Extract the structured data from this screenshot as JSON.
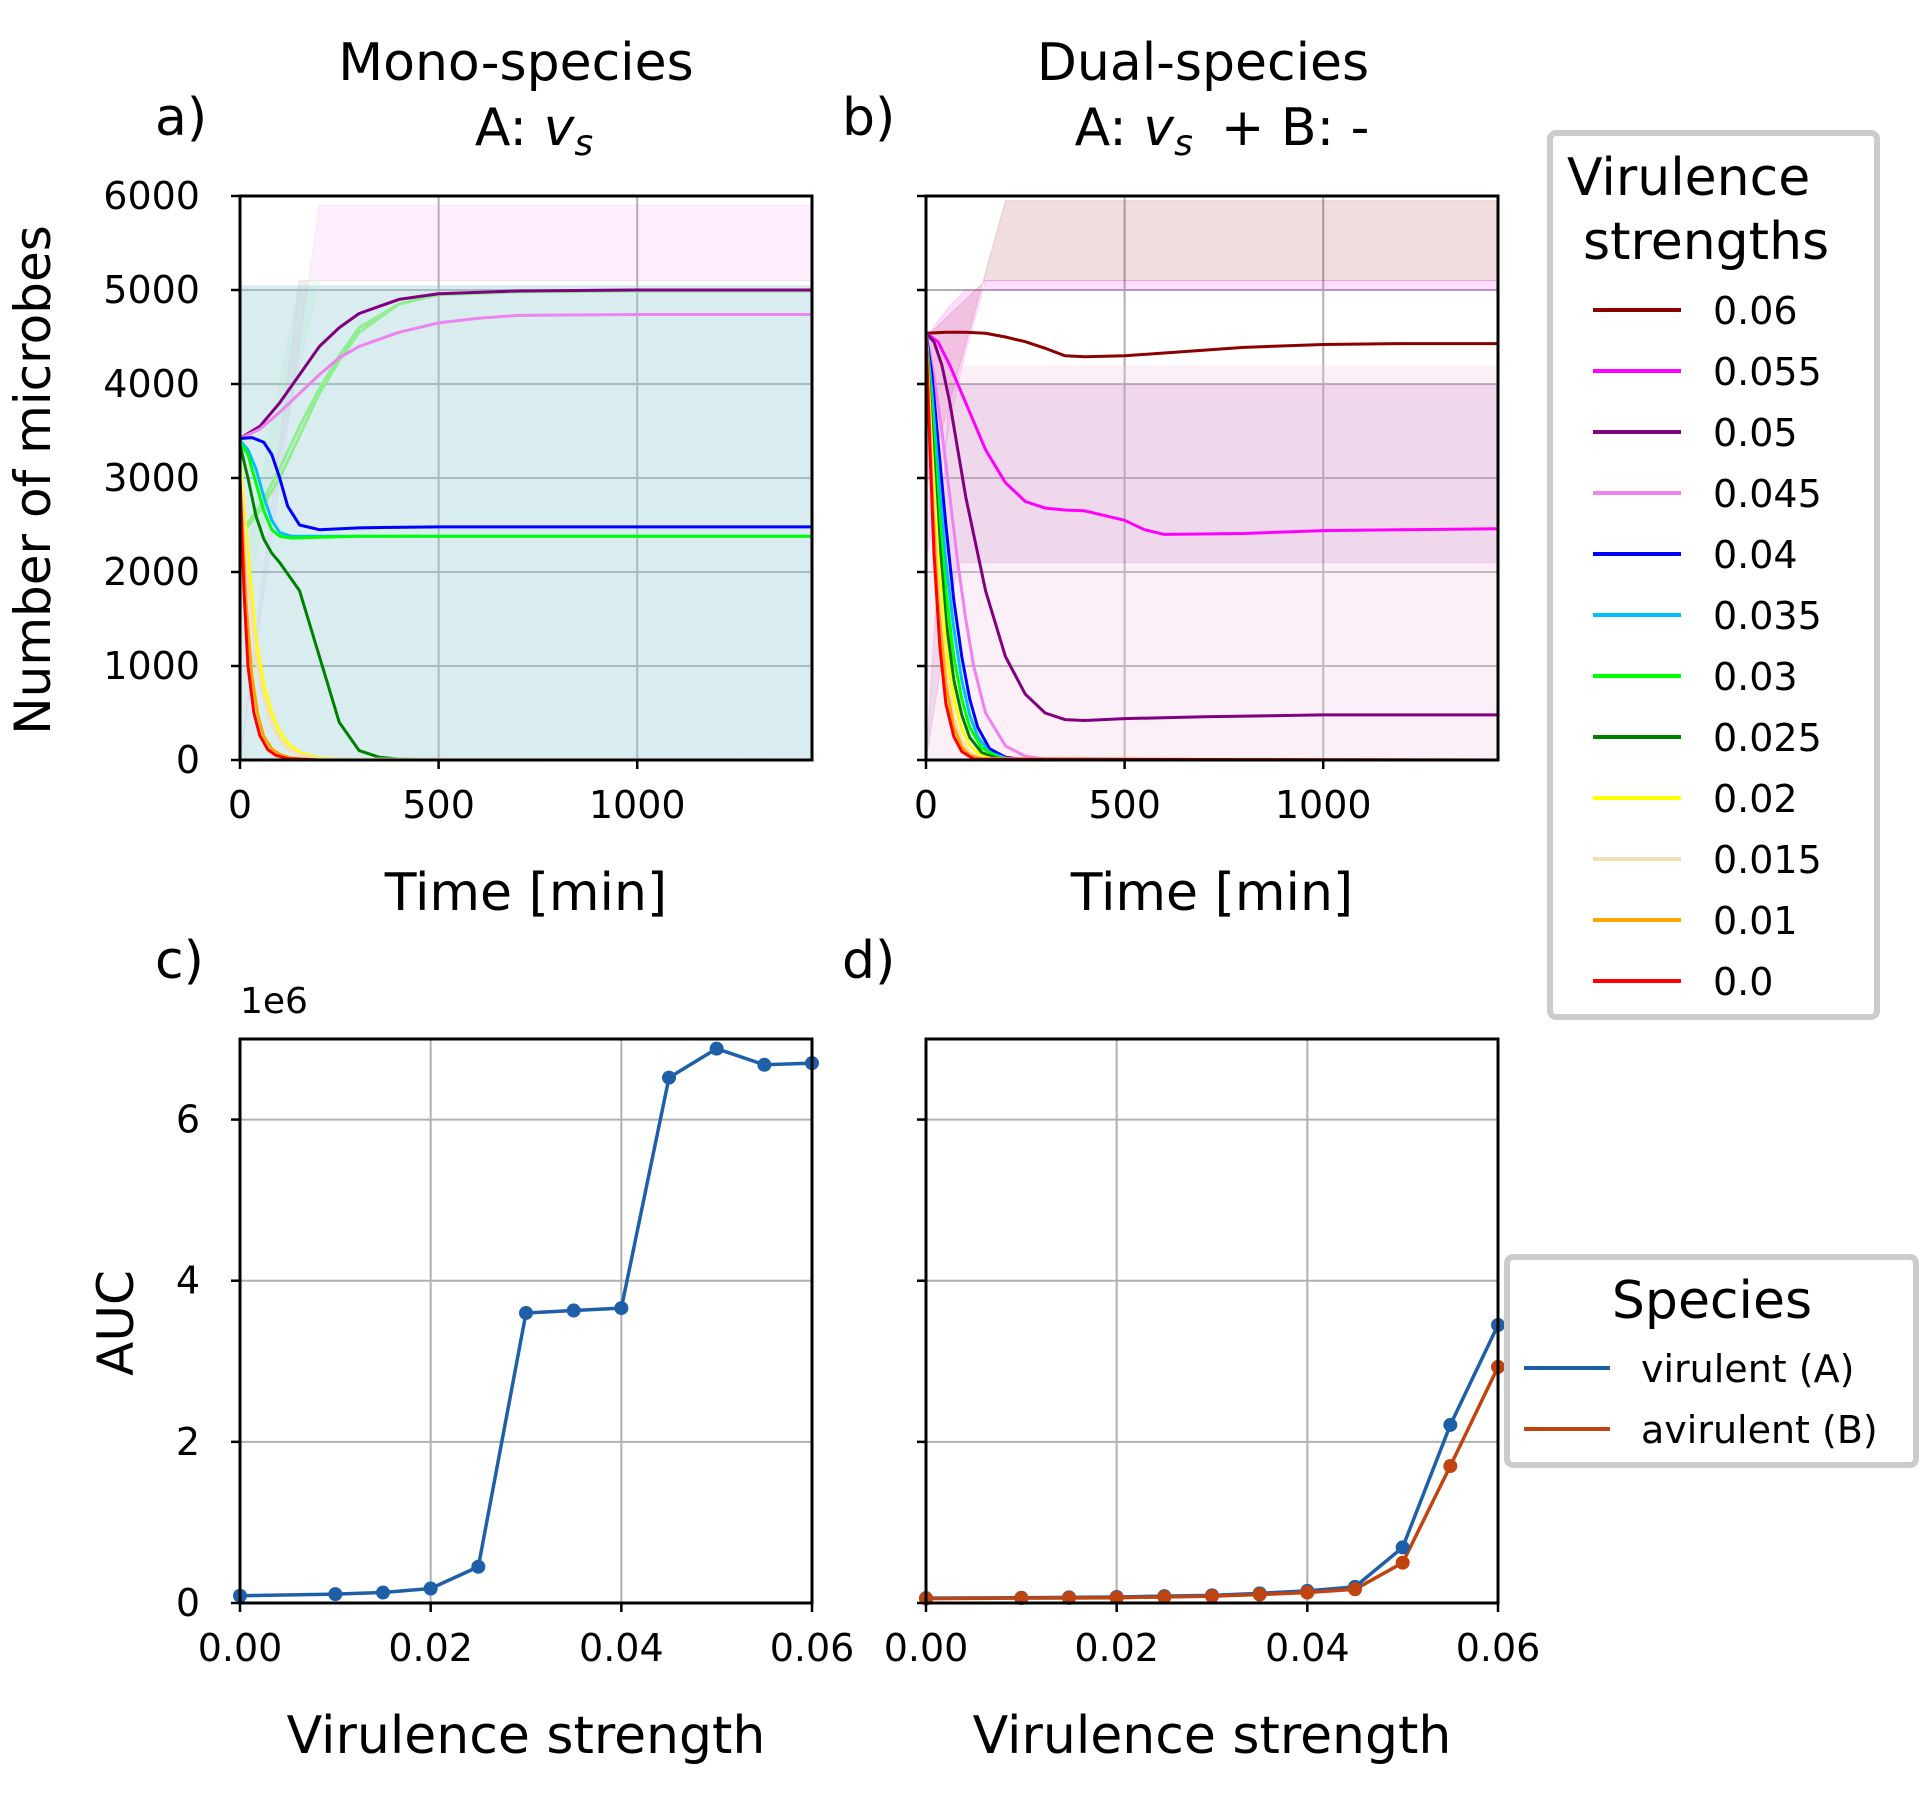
{
  "figure": {
    "panel_labels": [
      "a)",
      "b)",
      "c)",
      "d)"
    ],
    "panel_a_title": [
      "Mono-species",
      "A: "
    ],
    "panel_b_title": [
      "Dual-species",
      "A: ",
      "+  B: -"
    ],
    "title_v": "v",
    "title_sub": "s",
    "time_xlabel": "Time [min]",
    "count_ylabel": "Number of microbes",
    "auc_xlabel": "Virulence strength",
    "auc_ylabel": "AUC",
    "auc_offset": "1e6"
  },
  "legend_virulence": {
    "title": [
      "Virulence",
      "strengths"
    ],
    "entries": [
      {
        "label": "0.06",
        "color": "#8b0000"
      },
      {
        "label": "0.055",
        "color": "#ff00ff"
      },
      {
        "label": "0.05",
        "color": "#800080"
      },
      {
        "label": "0.045",
        "color": "#ee82ee"
      },
      {
        "label": "0.04",
        "color": "#0000ff"
      },
      {
        "label": "0.035",
        "color": "#00bfff"
      },
      {
        "label": "0.03",
        "color": "#00ff00"
      },
      {
        "label": "0.025",
        "color": "#008000"
      },
      {
        "label": "0.02",
        "color": "#ffff00"
      },
      {
        "label": "0.015",
        "color": "#f5deb3"
      },
      {
        "label": "0.01",
        "color": "#ffa500"
      },
      {
        "label": "0.0",
        "color": "#ff0000"
      }
    ]
  },
  "legend_species": {
    "title": "Species",
    "entries": [
      {
        "label": "virulent (A)",
        "color": "#1f5fa8"
      },
      {
        "label": "avirulent (B)",
        "color": "#c0440f"
      }
    ]
  },
  "chart_data": [
    {
      "panel": "a",
      "type": "line",
      "xlim": [
        0,
        1440
      ],
      "ylim": [
        0,
        6000
      ],
      "xticks": [
        0,
        500,
        1000
      ],
      "yticks": [
        0,
        1000,
        2000,
        3000,
        4000,
        5000,
        6000
      ],
      "grid": true,
      "series": [
        {
          "name": "0.06",
          "color": "#90ee90",
          "x": [
            0,
            50,
            100,
            150,
            200,
            250,
            300,
            400,
            500,
            700,
            1000,
            1440
          ],
          "y": [
            2380,
            2650,
            3000,
            3450,
            3900,
            4250,
            4550,
            4850,
            4950,
            4990,
            5000,
            5000
          ],
          "band": [
            [
              1800,
              5100
            ],
            [
              1440,
              5100
            ]
          ]
        },
        {
          "name": "0.055",
          "color": "#90ee90",
          "x": [
            0,
            50,
            100,
            150,
            200,
            250,
            300,
            400,
            500,
            700,
            1000,
            1440
          ],
          "y": [
            2400,
            2700,
            3100,
            3550,
            3950,
            4300,
            4600,
            4850,
            4950,
            4980,
            4990,
            4990
          ]
        },
        {
          "name": "0.05",
          "color": "#800080",
          "x": [
            0,
            50,
            100,
            150,
            200,
            250,
            300,
            400,
            500,
            700,
            1000,
            1440
          ],
          "y": [
            3420,
            3550,
            3800,
            4100,
            4400,
            4600,
            4750,
            4900,
            4960,
            4990,
            5000,
            5000
          ]
        },
        {
          "name": "0.045",
          "color": "#ee82ee",
          "x": [
            0,
            50,
            100,
            150,
            200,
            250,
            300,
            400,
            500,
            600,
            700,
            1000,
            1440
          ],
          "y": [
            3420,
            3520,
            3700,
            3900,
            4100,
            4280,
            4400,
            4550,
            4650,
            4700,
            4730,
            4740,
            4740
          ],
          "band": [
            [
              0,
              5100
            ],
            [
              0,
              5900
            ]
          ]
        },
        {
          "name": "0.04",
          "color": "#0000ff",
          "x": [
            0,
            30,
            60,
            80,
            100,
            120,
            150,
            200,
            300,
            500,
            1000,
            1440
          ],
          "y": [
            3420,
            3430,
            3380,
            3250,
            3000,
            2700,
            2500,
            2450,
            2470,
            2480,
            2480,
            2480
          ]
        },
        {
          "name": "0.035",
          "color": "#00bfff",
          "x": [
            0,
            20,
            40,
            60,
            80,
            100,
            130,
            200,
            300,
            500,
            1440
          ],
          "y": [
            3400,
            3300,
            3100,
            2800,
            2550,
            2420,
            2380,
            2380,
            2380,
            2380,
            2380
          ]
        },
        {
          "name": "0.03",
          "color": "#00ff00",
          "x": [
            0,
            20,
            40,
            60,
            80,
            100,
            130,
            200,
            300,
            500,
            1440
          ],
          "y": [
            3380,
            3250,
            2950,
            2650,
            2450,
            2380,
            2360,
            2370,
            2380,
            2380,
            2380
          ]
        },
        {
          "name": "0.025",
          "color": "#008000",
          "x": [
            0,
            20,
            40,
            60,
            80,
            100,
            150,
            200,
            250,
            300,
            350,
            400,
            500,
            1440
          ],
          "y": [
            3350,
            3000,
            2600,
            2350,
            2200,
            2100,
            1800,
            1100,
            400,
            100,
            30,
            10,
            0,
            0
          ]
        },
        {
          "name": "0.02",
          "color": "#ffff00",
          "x": [
            0,
            20,
            40,
            60,
            80,
            100,
            120,
            150,
            200,
            300,
            1440
          ],
          "y": [
            3200,
            2200,
            1300,
            800,
            500,
            300,
            180,
            80,
            20,
            0,
            0
          ]
        },
        {
          "name": "0.015",
          "color": "#f5deb3",
          "x": [
            0,
            20,
            40,
            60,
            80,
            100,
            120,
            150,
            200,
            1440
          ],
          "y": [
            3100,
            1900,
            1100,
            650,
            380,
            220,
            120,
            60,
            10,
            0
          ]
        },
        {
          "name": "0.01",
          "color": "#ffa500",
          "x": [
            0,
            15,
            30,
            45,
            60,
            80,
            100,
            130,
            200,
            1440
          ],
          "y": [
            3000,
            1700,
            900,
            480,
            250,
            120,
            60,
            20,
            0,
            0
          ]
        },
        {
          "name": "0.0",
          "color": "#ff0000",
          "x": [
            0,
            10,
            20,
            35,
            50,
            70,
            90,
            120,
            200,
            1440
          ],
          "y": [
            3000,
            1800,
            1000,
            500,
            260,
            110,
            50,
            15,
            0,
            0
          ]
        }
      ]
    },
    {
      "panel": "b",
      "type": "line",
      "xlim": [
        0,
        1440
      ],
      "ylim": [
        0,
        6000
      ],
      "xticks": [
        0,
        500,
        1000
      ],
      "grid": true,
      "series": [
        {
          "name": "0.06",
          "color": "#8b0000",
          "x": [
            0,
            50,
            100,
            150,
            200,
            250,
            300,
            350,
            400,
            500,
            600,
            800,
            1000,
            1200,
            1440
          ],
          "y": [
            4540,
            4550,
            4550,
            4540,
            4500,
            4450,
            4380,
            4300,
            4290,
            4300,
            4330,
            4390,
            4420,
            4430,
            4430
          ],
          "band": [
            [
              4500,
              5100
            ],
            [
              2900,
              5950
            ]
          ]
        },
        {
          "name": "0.055",
          "color": "#ff00ff",
          "x": [
            0,
            30,
            60,
            100,
            150,
            200,
            250,
            300,
            350,
            400,
            450,
            500,
            550,
            600,
            800,
            1000,
            1200,
            1440
          ],
          "y": [
            4540,
            4450,
            4200,
            3800,
            3300,
            2950,
            2750,
            2680,
            2660,
            2650,
            2600,
            2550,
            2450,
            2400,
            2410,
            2440,
            2450,
            2460
          ],
          "band": [
            [
              4500,
              5000
            ],
            [
              2100,
              5100
            ]
          ]
        },
        {
          "name": "0.05",
          "color": "#800080",
          "x": [
            0,
            20,
            40,
            60,
            80,
            100,
            150,
            200,
            250,
            300,
            350,
            400,
            500,
            700,
            1000,
            1200,
            1440
          ],
          "y": [
            4540,
            4450,
            4200,
            3800,
            3300,
            2800,
            1800,
            1100,
            700,
            500,
            430,
            420,
            440,
            460,
            480,
            480,
            480
          ],
          "band": [
            [
              0,
              4000
            ],
            [
              0,
              2100
            ]
          ]
        },
        {
          "name": "0.045",
          "color": "#ee82ee",
          "x": [
            0,
            20,
            40,
            60,
            80,
            100,
            120,
            150,
            200,
            250,
            300,
            400,
            1440
          ],
          "y": [
            4540,
            4100,
            3500,
            2800,
            2100,
            1500,
            1000,
            500,
            150,
            40,
            10,
            0,
            0
          ]
        },
        {
          "name": "0.04",
          "color": "#0000ff",
          "x": [
            0,
            15,
            30,
            50,
            70,
            90,
            110,
            130,
            160,
            200,
            250,
            1440
          ],
          "y": [
            4540,
            4100,
            3400,
            2500,
            1700,
            1100,
            650,
            350,
            120,
            30,
            0,
            0
          ]
        },
        {
          "name": "0.035",
          "color": "#00bfff",
          "x": [
            0,
            15,
            30,
            50,
            70,
            90,
            110,
            130,
            160,
            200,
            250,
            1440
          ],
          "y": [
            4540,
            3900,
            3100,
            2100,
            1400,
            850,
            480,
            250,
            80,
            20,
            0,
            0
          ]
        },
        {
          "name": "0.03",
          "color": "#00ff00",
          "x": [
            0,
            15,
            30,
            50,
            70,
            90,
            110,
            140,
            180,
            230,
            1440
          ],
          "y": [
            4540,
            3700,
            2800,
            1800,
            1100,
            650,
            350,
            130,
            30,
            0,
            0
          ]
        },
        {
          "name": "0.025",
          "color": "#008000",
          "x": [
            0,
            15,
            30,
            50,
            70,
            90,
            110,
            140,
            180,
            230,
            1440
          ],
          "y": [
            4540,
            3500,
            2500,
            1500,
            850,
            480,
            240,
            80,
            15,
            0,
            0
          ]
        },
        {
          "name": "0.02",
          "color": "#ffff00",
          "x": [
            0,
            15,
            30,
            50,
            70,
            90,
            110,
            140,
            180,
            1440
          ],
          "y": [
            4540,
            3300,
            2200,
            1200,
            650,
            330,
            150,
            40,
            0,
            0
          ]
        },
        {
          "name": "0.015",
          "color": "#f5deb3",
          "x": [
            0,
            15,
            30,
            50,
            70,
            90,
            110,
            140,
            1440
          ],
          "y": [
            4540,
            3100,
            1900,
            950,
            450,
            200,
            80,
            15,
            0
          ]
        },
        {
          "name": "0.01",
          "color": "#ffa500",
          "x": [
            0,
            15,
            30,
            50,
            70,
            90,
            110,
            140,
            1440
          ],
          "y": [
            4540,
            2900,
            1700,
            800,
            350,
            140,
            50,
            10,
            0
          ]
        },
        {
          "name": "0.0",
          "color": "#ff0000",
          "x": [
            0,
            10,
            20,
            35,
            50,
            70,
            90,
            120,
            1440
          ],
          "y": [
            4540,
            3300,
            2200,
            1200,
            600,
            250,
            90,
            10,
            0
          ]
        }
      ]
    },
    {
      "panel": "c",
      "type": "line",
      "xlim": [
        0,
        0.06
      ],
      "ylim": [
        0,
        7000000
      ],
      "xticks": [
        "0.00",
        "0.02",
        "0.04",
        "0.06"
      ],
      "yticks": [
        0,
        2,
        4,
        6
      ],
      "grid": true,
      "markers": true,
      "series": [
        {
          "name": "virulent (A)",
          "color": "#1f5fa8",
          "x": [
            0,
            0.01,
            0.015,
            0.02,
            0.025,
            0.03,
            0.035,
            0.04,
            0.045,
            0.05,
            0.055,
            0.06
          ],
          "y": [
            90000,
            110000,
            130000,
            180000,
            450000,
            3600000,
            3630000,
            3660000,
            6520000,
            6880000,
            6680000,
            6700000
          ]
        }
      ]
    },
    {
      "panel": "d",
      "type": "line",
      "xlim": [
        0,
        0.06
      ],
      "ylim": [
        0,
        7000000
      ],
      "xticks": [
        "0.00",
        "0.02",
        "0.04",
        "0.06"
      ],
      "grid": true,
      "markers": true,
      "series": [
        {
          "name": "virulent (A)",
          "color": "#1f5fa8",
          "x": [
            0,
            0.01,
            0.015,
            0.02,
            0.025,
            0.03,
            0.035,
            0.04,
            0.045,
            0.05,
            0.055,
            0.06
          ],
          "y": [
            60000,
            65000,
            70000,
            75000,
            85000,
            95000,
            120000,
            150000,
            200000,
            690000,
            2210000,
            3450000
          ]
        },
        {
          "name": "avirulent (B)",
          "color": "#c0440f",
          "x": [
            0,
            0.01,
            0.015,
            0.02,
            0.025,
            0.03,
            0.035,
            0.04,
            0.045,
            0.05,
            0.055,
            0.06
          ],
          "y": [
            55000,
            60000,
            62000,
            65000,
            75000,
            85000,
            105000,
            130000,
            170000,
            500000,
            1700000,
            2930000
          ]
        }
      ]
    }
  ]
}
